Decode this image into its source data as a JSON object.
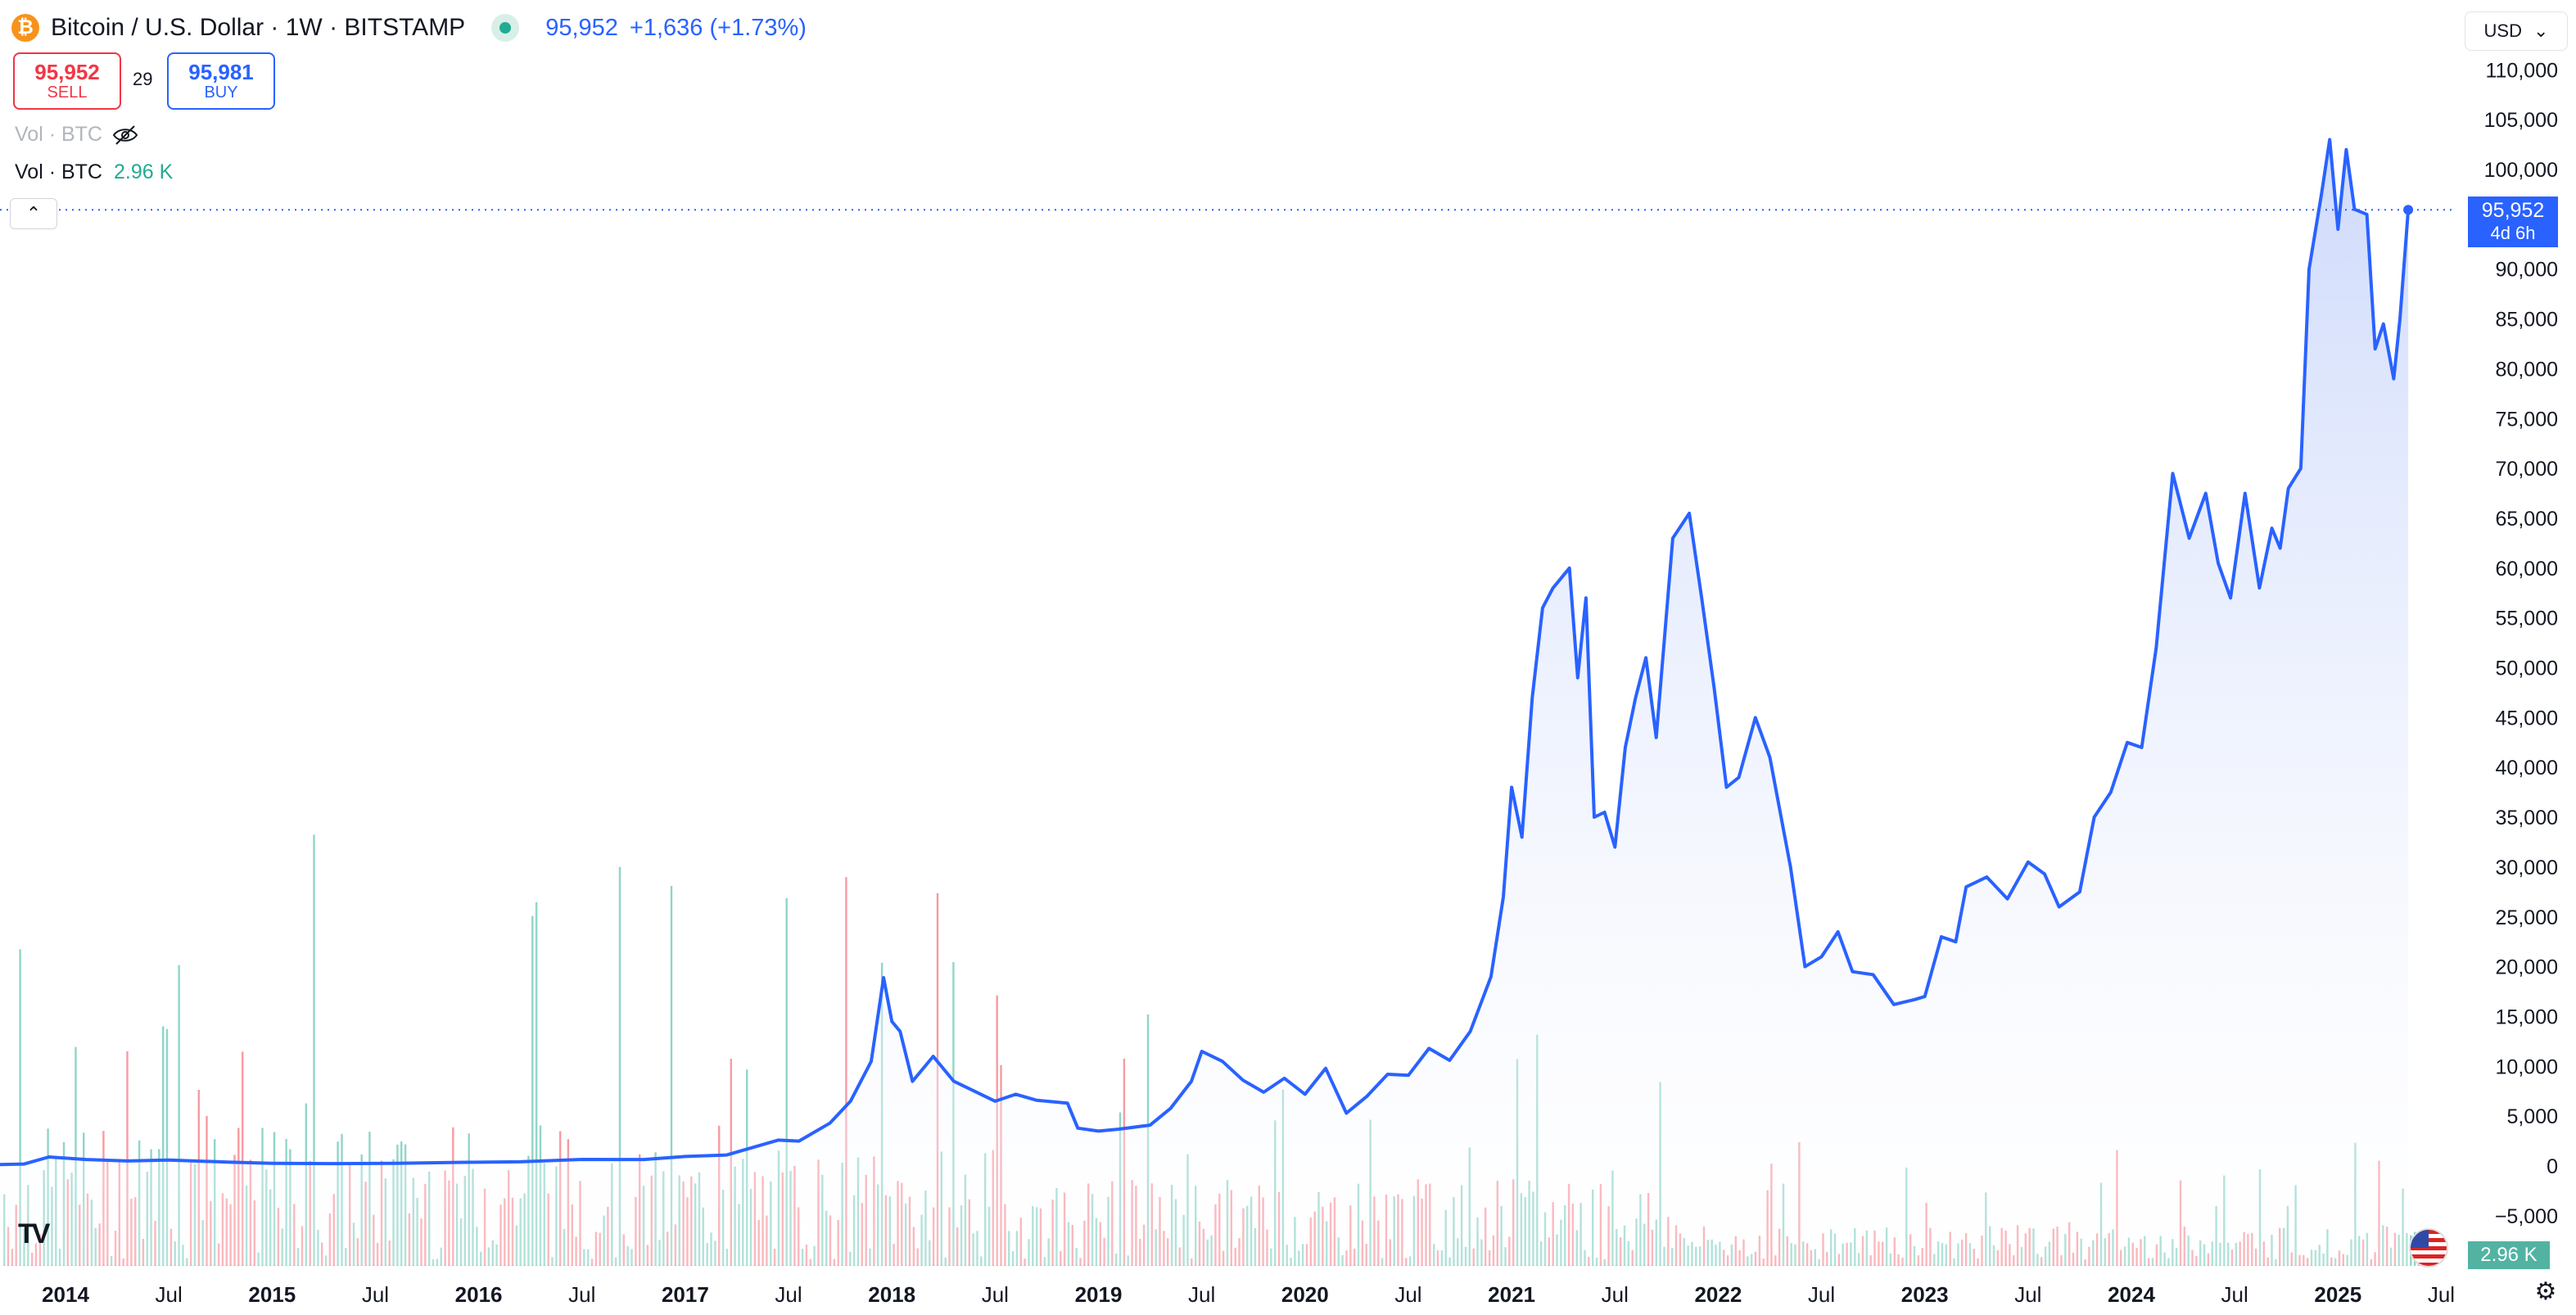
{
  "header": {
    "symbol_glyph": "₿",
    "title": "Bitcoin / U.S. Dollar · 1W · BITSTAMP",
    "price": "95,952",
    "change": "+1,636 (+1.73%)"
  },
  "trade": {
    "sell_price": "95,952",
    "sell_label": "SELL",
    "spread": "29",
    "buy_price": "95,981",
    "buy_label": "BUY"
  },
  "legend": {
    "vol_hidden": "Vol · BTC",
    "vol_label": "Vol · BTC",
    "vol_value": "2.96 K"
  },
  "currency": {
    "label": "USD"
  },
  "last_price_label": {
    "price": "95,952",
    "countdown": "4d 6h"
  },
  "volume_label": "2.96 K",
  "colors": {
    "line": "#2962ff",
    "up": "#22ab94",
    "down": "#f23645",
    "fill": "#dbe4fb"
  },
  "chart_data": {
    "type": "area",
    "title": "Bitcoin / U.S. Dollar · 1W · BITSTAMP",
    "x_unit": "year (decimal)",
    "xlim": [
      2013.57,
      2025.5
    ],
    "ylim": [
      -8000,
      112000
    ],
    "y_ticks": [
      110000,
      105000,
      100000,
      95000,
      90000,
      85000,
      80000,
      75000,
      70000,
      65000,
      60000,
      55000,
      50000,
      45000,
      40000,
      35000,
      30000,
      25000,
      20000,
      15000,
      10000,
      5000,
      0,
      -5000
    ],
    "y_tick_labels": [
      "110,000",
      "105,000",
      "100,000",
      "95,000",
      "90,000",
      "85,000",
      "80,000",
      "75,000",
      "70,000",
      "65,000",
      "60,000",
      "55,000",
      "50,000",
      "45,000",
      "40,000",
      "35,000",
      "30,000",
      "25,000",
      "20,000",
      "15,000",
      "10,000",
      "5,000",
      "0",
      "−5,000"
    ],
    "x_ticks": [
      {
        "x": 2014.0,
        "label": "2014",
        "bold": true
      },
      {
        "x": 2014.5,
        "label": "Jul"
      },
      {
        "x": 2015.0,
        "label": "2015",
        "bold": true
      },
      {
        "x": 2015.5,
        "label": "Jul"
      },
      {
        "x": 2016.0,
        "label": "2016",
        "bold": true
      },
      {
        "x": 2016.5,
        "label": "Jul"
      },
      {
        "x": 2017.0,
        "label": "2017",
        "bold": true
      },
      {
        "x": 2017.5,
        "label": "Jul"
      },
      {
        "x": 2018.0,
        "label": "2018",
        "bold": true
      },
      {
        "x": 2018.5,
        "label": "Jul"
      },
      {
        "x": 2019.0,
        "label": "2019",
        "bold": true
      },
      {
        "x": 2019.5,
        "label": "Jul"
      },
      {
        "x": 2020.0,
        "label": "2020",
        "bold": true
      },
      {
        "x": 2020.5,
        "label": "Jul"
      },
      {
        "x": 2021.0,
        "label": "2021",
        "bold": true
      },
      {
        "x": 2021.5,
        "label": "Jul"
      },
      {
        "x": 2022.0,
        "label": "2022",
        "bold": true
      },
      {
        "x": 2022.5,
        "label": "Jul"
      },
      {
        "x": 2023.0,
        "label": "2023",
        "bold": true
      },
      {
        "x": 2023.5,
        "label": "Jul"
      },
      {
        "x": 2024.0,
        "label": "2024",
        "bold": true
      },
      {
        "x": 2024.5,
        "label": "Jul"
      },
      {
        "x": 2025.0,
        "label": "2025",
        "bold": true
      },
      {
        "x": 2025.5,
        "label": "Jul"
      }
    ],
    "last_value": 95952,
    "series": [
      {
        "points": [
          [
            2013.57,
            100
          ],
          [
            2013.8,
            200
          ],
          [
            2013.92,
            900
          ],
          [
            2014.1,
            650
          ],
          [
            2014.3,
            500
          ],
          [
            2014.5,
            600
          ],
          [
            2014.8,
            380
          ],
          [
            2015.0,
            270
          ],
          [
            2015.3,
            240
          ],
          [
            2015.6,
            260
          ],
          [
            2015.9,
            360
          ],
          [
            2016.2,
            420
          ],
          [
            2016.5,
            660
          ],
          [
            2016.8,
            650
          ],
          [
            2017.0,
            950
          ],
          [
            2017.2,
            1100
          ],
          [
            2017.45,
            2600
          ],
          [
            2017.55,
            2500
          ],
          [
            2017.7,
            4300
          ],
          [
            2017.8,
            6500
          ],
          [
            2017.9,
            10500
          ],
          [
            2017.96,
            18900
          ],
          [
            2018.0,
            14500
          ],
          [
            2018.04,
            13500
          ],
          [
            2018.1,
            8500
          ],
          [
            2018.2,
            11000
          ],
          [
            2018.3,
            8500
          ],
          [
            2018.4,
            7500
          ],
          [
            2018.5,
            6500
          ],
          [
            2018.6,
            7200
          ],
          [
            2018.7,
            6600
          ],
          [
            2018.85,
            6300
          ],
          [
            2018.9,
            3800
          ],
          [
            2019.0,
            3500
          ],
          [
            2019.1,
            3700
          ],
          [
            2019.25,
            4100
          ],
          [
            2019.35,
            5800
          ],
          [
            2019.45,
            8500
          ],
          [
            2019.5,
            11500
          ],
          [
            2019.6,
            10500
          ],
          [
            2019.7,
            8600
          ],
          [
            2019.8,
            7400
          ],
          [
            2019.9,
            8800
          ],
          [
            2020.0,
            7200
          ],
          [
            2020.1,
            9800
          ],
          [
            2020.2,
            5300
          ],
          [
            2020.3,
            7000
          ],
          [
            2020.4,
            9200
          ],
          [
            2020.5,
            9100
          ],
          [
            2020.6,
            11800
          ],
          [
            2020.7,
            10600
          ],
          [
            2020.8,
            13500
          ],
          [
            2020.9,
            19000
          ],
          [
            2020.96,
            27000
          ],
          [
            2021.0,
            38000
          ],
          [
            2021.05,
            33000
          ],
          [
            2021.1,
            47000
          ],
          [
            2021.15,
            56000
          ],
          [
            2021.2,
            58000
          ],
          [
            2021.28,
            60000
          ],
          [
            2021.32,
            49000
          ],
          [
            2021.36,
            57000
          ],
          [
            2021.4,
            35000
          ],
          [
            2021.45,
            35500
          ],
          [
            2021.5,
            32000
          ],
          [
            2021.55,
            42000
          ],
          [
            2021.6,
            47000
          ],
          [
            2021.65,
            51000
          ],
          [
            2021.7,
            43000
          ],
          [
            2021.78,
            63000
          ],
          [
            2021.86,
            65500
          ],
          [
            2021.92,
            57000
          ],
          [
            2021.98,
            48000
          ],
          [
            2022.04,
            38000
          ],
          [
            2022.1,
            39000
          ],
          [
            2022.18,
            45000
          ],
          [
            2022.25,
            41000
          ],
          [
            2022.35,
            30000
          ],
          [
            2022.42,
            20000
          ],
          [
            2022.5,
            21000
          ],
          [
            2022.58,
            23500
          ],
          [
            2022.65,
            19500
          ],
          [
            2022.75,
            19200
          ],
          [
            2022.85,
            16200
          ],
          [
            2022.95,
            16700
          ],
          [
            2023.0,
            17000
          ],
          [
            2023.08,
            23000
          ],
          [
            2023.15,
            22500
          ],
          [
            2023.2,
            28000
          ],
          [
            2023.3,
            29000
          ],
          [
            2023.4,
            26800
          ],
          [
            2023.5,
            30500
          ],
          [
            2023.58,
            29300
          ],
          [
            2023.65,
            26000
          ],
          [
            2023.75,
            27500
          ],
          [
            2023.82,
            35000
          ],
          [
            2023.9,
            37500
          ],
          [
            2023.98,
            42500
          ],
          [
            2024.05,
            42000
          ],
          [
            2024.12,
            52000
          ],
          [
            2024.2,
            69500
          ],
          [
            2024.28,
            63000
          ],
          [
            2024.36,
            67500
          ],
          [
            2024.42,
            60500
          ],
          [
            2024.48,
            57000
          ],
          [
            2024.55,
            67500
          ],
          [
            2024.62,
            58000
          ],
          [
            2024.68,
            64000
          ],
          [
            2024.72,
            62000
          ],
          [
            2024.76,
            68000
          ],
          [
            2024.82,
            70000
          ],
          [
            2024.86,
            90000
          ],
          [
            2024.92,
            97500
          ],
          [
            2024.96,
            103000
          ],
          [
            2025.0,
            94000
          ],
          [
            2025.04,
            102000
          ],
          [
            2025.08,
            96000
          ],
          [
            2025.14,
            95500
          ],
          [
            2025.18,
            82000
          ],
          [
            2025.22,
            84500
          ],
          [
            2025.27,
            79000
          ],
          [
            2025.3,
            85000
          ],
          [
            2025.34,
            95952
          ]
        ]
      }
    ],
    "volume_series": {
      "name": "Vol · BTC",
      "last": 2960
    }
  }
}
